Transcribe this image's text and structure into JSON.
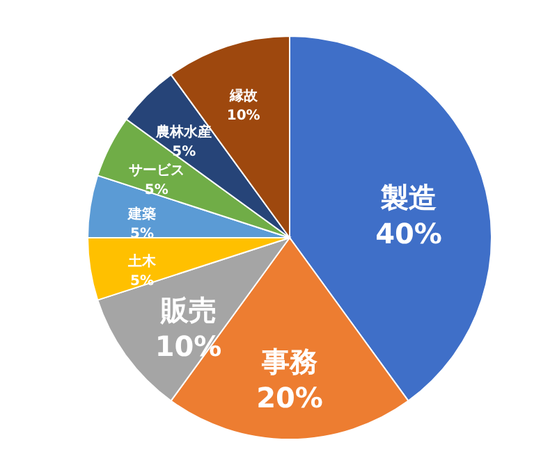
{
  "chart_data": {
    "type": "pie",
    "categories": [
      "製造",
      "事務",
      "販売",
      "土木",
      "建築",
      "サービス",
      "農林水産",
      "縁故"
    ],
    "values": [
      40,
      20,
      10,
      5,
      5,
      5,
      5,
      10
    ],
    "value_labels": [
      "40%",
      "20%",
      "10%",
      "5%",
      "5%",
      "5%",
      "5%",
      "10%"
    ],
    "colors": [
      "#3f6fc8",
      "#ed7d31",
      "#a5a5a5",
      "#ffc000",
      "#5b9bd5",
      "#70ad47",
      "#264478",
      "#9e480e"
    ]
  }
}
